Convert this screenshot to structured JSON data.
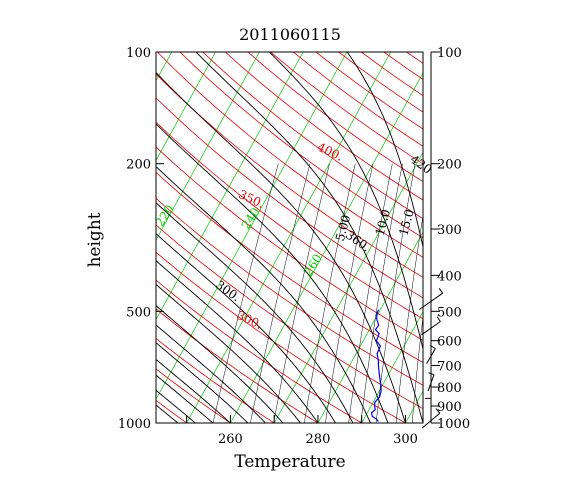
{
  "chart_data": {
    "type": "line",
    "title": "2011060115",
    "xlabel": "Temperature",
    "ylabel": "height",
    "xlim": [
      243,
      304
    ],
    "ylim": [
      1000,
      100
    ],
    "y_scale": "log",
    "x_ticks": [
      {
        "value": 260,
        "label": "260"
      },
      {
        "value": 280,
        "label": "280"
      },
      {
        "value": 300,
        "label": "300"
      }
    ],
    "y_ticks": [
      {
        "value": 100,
        "label": "100"
      },
      {
        "value": 200,
        "label": "200"
      },
      {
        "value": 500,
        "label": "500"
      },
      {
        "value": 1000,
        "label": "1000"
      }
    ],
    "right_axis_ticks": [
      {
        "value": 100,
        "label": "100"
      },
      {
        "value": 200,
        "label": "200"
      },
      {
        "value": 300,
        "label": "300"
      },
      {
        "value": 400,
        "label": "400"
      },
      {
        "value": 500,
        "label": "500"
      },
      {
        "value": 600,
        "label": "600"
      },
      {
        "value": 700,
        "label": "700"
      },
      {
        "value": 800,
        "label": "800"
      },
      {
        "value": 900,
        "label": "900"
      },
      {
        "value": 1000,
        "label": "1000"
      }
    ],
    "colors": {
      "isotherm": "#00cc00",
      "dry_adiabat": "#ee0000",
      "moist_adiabat": "#000000",
      "mixing_ratio": "#000000",
      "sounding": "#0000ee"
    },
    "isotherm_labels": [
      {
        "text": "220",
        "temp": 220,
        "p": 280
      },
      {
        "text": "240",
        "temp": 240,
        "p": 285
      },
      {
        "text": "260",
        "temp": 260,
        "p": 380
      }
    ],
    "dry_adiabat_labels": [
      {
        "text": "300.",
        "theta": 300,
        "p": 540
      },
      {
        "text": "350.",
        "theta": 350,
        "p": 255
      },
      {
        "text": "400.",
        "theta": 400,
        "p": 190
      }
    ],
    "moist_adiabat_labels": [
      {
        "text": "300.",
        "theta": 300,
        "p": 450
      },
      {
        "text": "360.",
        "theta": 360,
        "p": 330
      },
      {
        "text": "420",
        "theta": 420,
        "p": 205
      }
    ],
    "mixing_ratio_labels": [
      {
        "text": "5.00",
        "w": 5,
        "p": 300
      },
      {
        "text": "10.0",
        "w": 10,
        "p": 290
      },
      {
        "text": "15.0",
        "w": 15,
        "p": 290
      }
    ],
    "sounding": {
      "name": "",
      "points": [
        {
          "p": 495,
          "t": 279.6
        },
        {
          "p": 510,
          "t": 279.8
        },
        {
          "p": 525,
          "t": 280.4
        },
        {
          "p": 545,
          "t": 281.6
        },
        {
          "p": 560,
          "t": 281.4
        },
        {
          "p": 575,
          "t": 282.8
        },
        {
          "p": 600,
          "t": 283.0
        },
        {
          "p": 620,
          "t": 284.6
        },
        {
          "p": 650,
          "t": 284.8
        },
        {
          "p": 680,
          "t": 286.0
        },
        {
          "p": 700,
          "t": 286.6
        },
        {
          "p": 730,
          "t": 287.6
        },
        {
          "p": 760,
          "t": 288.6
        },
        {
          "p": 790,
          "t": 289.6
        },
        {
          "p": 820,
          "t": 290.4
        },
        {
          "p": 850,
          "t": 290.8
        },
        {
          "p": 880,
          "t": 290.4
        },
        {
          "p": 900,
          "t": 290.8
        },
        {
          "p": 920,
          "t": 291.4
        },
        {
          "p": 940,
          "t": 291.0
        },
        {
          "p": 960,
          "t": 291.6
        },
        {
          "p": 975,
          "t": 292.8
        },
        {
          "p": 990,
          "t": 293.6
        }
      ]
    },
    "wind_barbs": [
      {
        "p": 470,
        "dir": 235,
        "speed": 15
      },
      {
        "p": 555,
        "dir": 235,
        "speed": 10
      },
      {
        "p": 660,
        "dir": 210,
        "speed": 5
      },
      {
        "p": 780,
        "dir": 200,
        "speed": 5
      },
      {
        "p": 900,
        "dir": 180,
        "speed": 3
      },
      {
        "p": 985,
        "dir": 230,
        "speed": 10
      }
    ]
  }
}
